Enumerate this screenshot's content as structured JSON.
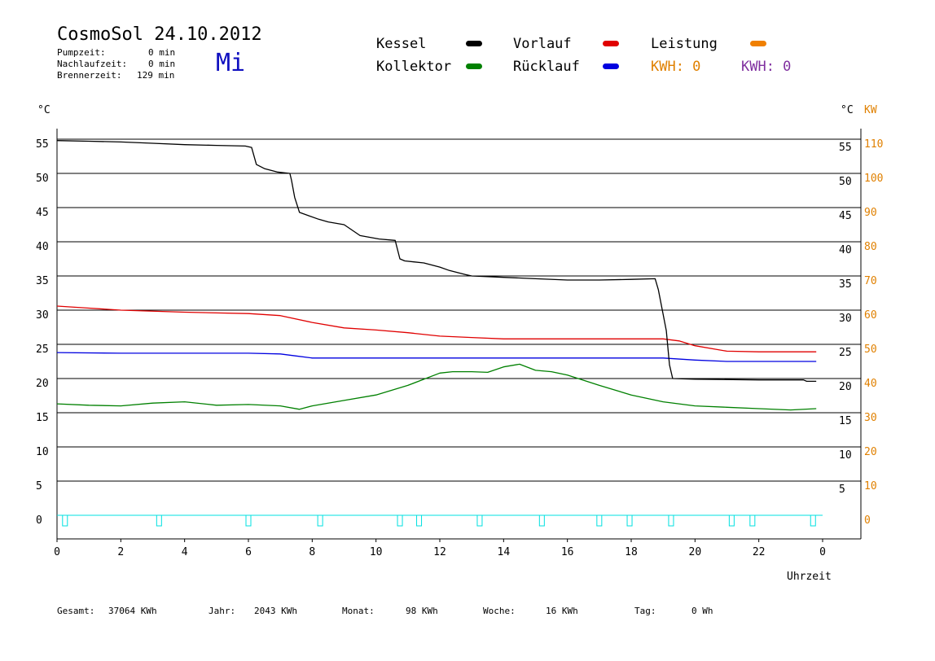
{
  "header": {
    "title": "CosmoSol 24.10.2012",
    "pump_label": "Pumpzeit:",
    "pump_value": "0 min",
    "nachlauf_label": "Nachlaufzeit:",
    "nachlauf_value": "0 min",
    "brenner_label": "Brennerzeit:",
    "brenner_value": "129 min",
    "weekday": "Mi"
  },
  "legend": {
    "kessel": "Kessel",
    "kollektor": "Kollektor",
    "vorlauf": "Vorlauf",
    "ruecklauf": "Rücklauf",
    "leistung": "Leistung",
    "kwh_orange": "KWH: 0",
    "kwh_purple": "KWH: 0"
  },
  "colors": {
    "kessel": "#000000",
    "kollektor": "#008000",
    "vorlauf": "#e00000",
    "ruecklauf": "#0000e0",
    "leistung": "#f08000",
    "pump": "#00e0e0",
    "kwh_orange": "#e08000",
    "kwh_purple": "#8030a0"
  },
  "axes": {
    "left_unit": "°C",
    "right_unit": "°C",
    "right_unit2": "KW",
    "xlabel": "Uhrzeit"
  },
  "footer": {
    "gesamt_label": "Gesamt:",
    "gesamt_value": "37064 KWh",
    "jahr_label": "Jahr:",
    "jahr_value": "2043 KWh",
    "monat_label": "Monat:",
    "monat_value": "98 KWh",
    "woche_label": "Woche:",
    "woche_value": "16 KWh",
    "tag_label": "Tag:",
    "tag_value": "0 Wh"
  },
  "chart_data": {
    "type": "line",
    "xlim": [
      0,
      24
    ],
    "ylim": [
      0,
      57
    ],
    "grid": true,
    "x_ticks": [
      "0",
      "2",
      "4",
      "6",
      "8",
      "10",
      "12",
      "14",
      "16",
      "18",
      "20",
      "22",
      "0"
    ],
    "y_ticks_left": [
      0,
      5,
      10,
      15,
      20,
      25,
      30,
      35,
      40,
      45,
      50,
      55
    ],
    "y_ticks_right_temp": [
      5,
      10,
      15,
      20,
      25,
      30,
      35,
      40,
      45,
      50,
      55
    ],
    "y_ticks_right_kw": [
      0,
      10,
      20,
      30,
      40,
      50,
      60,
      70,
      80,
      90,
      100,
      110
    ],
    "series": [
      {
        "name": "Kessel",
        "key": "kessel",
        "x": [
          0,
          1,
          2,
          3,
          4,
          5,
          5.9,
          6.1,
          6.25,
          6.5,
          6.9,
          7.3,
          7.35,
          7.45,
          7.6,
          7.9,
          8.2,
          8.5,
          9,
          9.5,
          10.1,
          10.6,
          10.75,
          10.9,
          11.5,
          12,
          12.3,
          12.8,
          13,
          13.5,
          14,
          14.5,
          15,
          16,
          17,
          18,
          18.75,
          18.85,
          19.1,
          19.2,
          19.3,
          20,
          22,
          23.4,
          23.5,
          23.8
        ],
        "y": [
          54.8,
          54.7,
          54.6,
          54.4,
          54.2,
          54.1,
          54.0,
          53.8,
          51.3,
          50.7,
          50.2,
          50.0,
          49.0,
          46.5,
          44.3,
          43.8,
          43.3,
          42.9,
          42.5,
          40.9,
          40.4,
          40.2,
          37.5,
          37.2,
          36.9,
          36.3,
          35.8,
          35.2,
          35.0,
          34.9,
          34.8,
          34.7,
          34.6,
          34.4,
          34.4,
          34.5,
          34.6,
          33.0,
          27.0,
          22.0,
          20.0,
          19.9,
          19.8,
          19.8,
          19.6,
          19.6
        ]
      },
      {
        "name": "Vorlauf",
        "key": "vorlauf",
        "x": [
          0,
          1,
          2,
          4,
          6,
          7,
          8,
          9,
          10,
          11,
          12,
          13,
          14,
          16,
          18,
          19,
          19.5,
          20,
          21,
          22,
          23,
          23.8
        ],
        "y": [
          30.6,
          30.3,
          30.0,
          29.7,
          29.5,
          29.2,
          28.2,
          27.4,
          27.1,
          26.7,
          26.2,
          26.0,
          25.8,
          25.8,
          25.8,
          25.8,
          25.5,
          24.8,
          24.0,
          23.9,
          23.9,
          23.9
        ]
      },
      {
        "name": "Rücklauf",
        "key": "ruecklauf",
        "x": [
          0,
          2,
          4,
          6,
          7,
          7.5,
          8,
          10,
          12,
          14,
          16,
          18,
          19,
          20,
          21,
          22,
          23.8
        ],
        "y": [
          23.8,
          23.7,
          23.7,
          23.7,
          23.6,
          23.3,
          23.0,
          23.0,
          23.0,
          23.0,
          23.0,
          23.0,
          23.0,
          22.7,
          22.5,
          22.5,
          22.5
        ]
      },
      {
        "name": "Kollektor",
        "key": "kollektor",
        "x": [
          0,
          1,
          2,
          3,
          4,
          5,
          6,
          7,
          7.6,
          8,
          9,
          10,
          11,
          12,
          12.4,
          13,
          13.5,
          14,
          14.5,
          15,
          15.5,
          16,
          17,
          18,
          19,
          20,
          21,
          22,
          23,
          23.8
        ],
        "y": [
          16.3,
          16.1,
          16.0,
          16.4,
          16.6,
          16.1,
          16.2,
          16.0,
          15.5,
          16.0,
          16.8,
          17.6,
          19.0,
          20.8,
          21.0,
          21.0,
          20.9,
          21.7,
          22.1,
          21.2,
          21.0,
          20.5,
          19.0,
          17.6,
          16.6,
          16.0,
          15.8,
          15.6,
          15.4,
          15.6
        ]
      }
    ],
    "pump_events": [
      0.25,
      3.2,
      6.0,
      8.25,
      10.75,
      11.35,
      13.25,
      15.2,
      17.0,
      17.95,
      19.25,
      21.15,
      21.8,
      23.7
    ]
  }
}
